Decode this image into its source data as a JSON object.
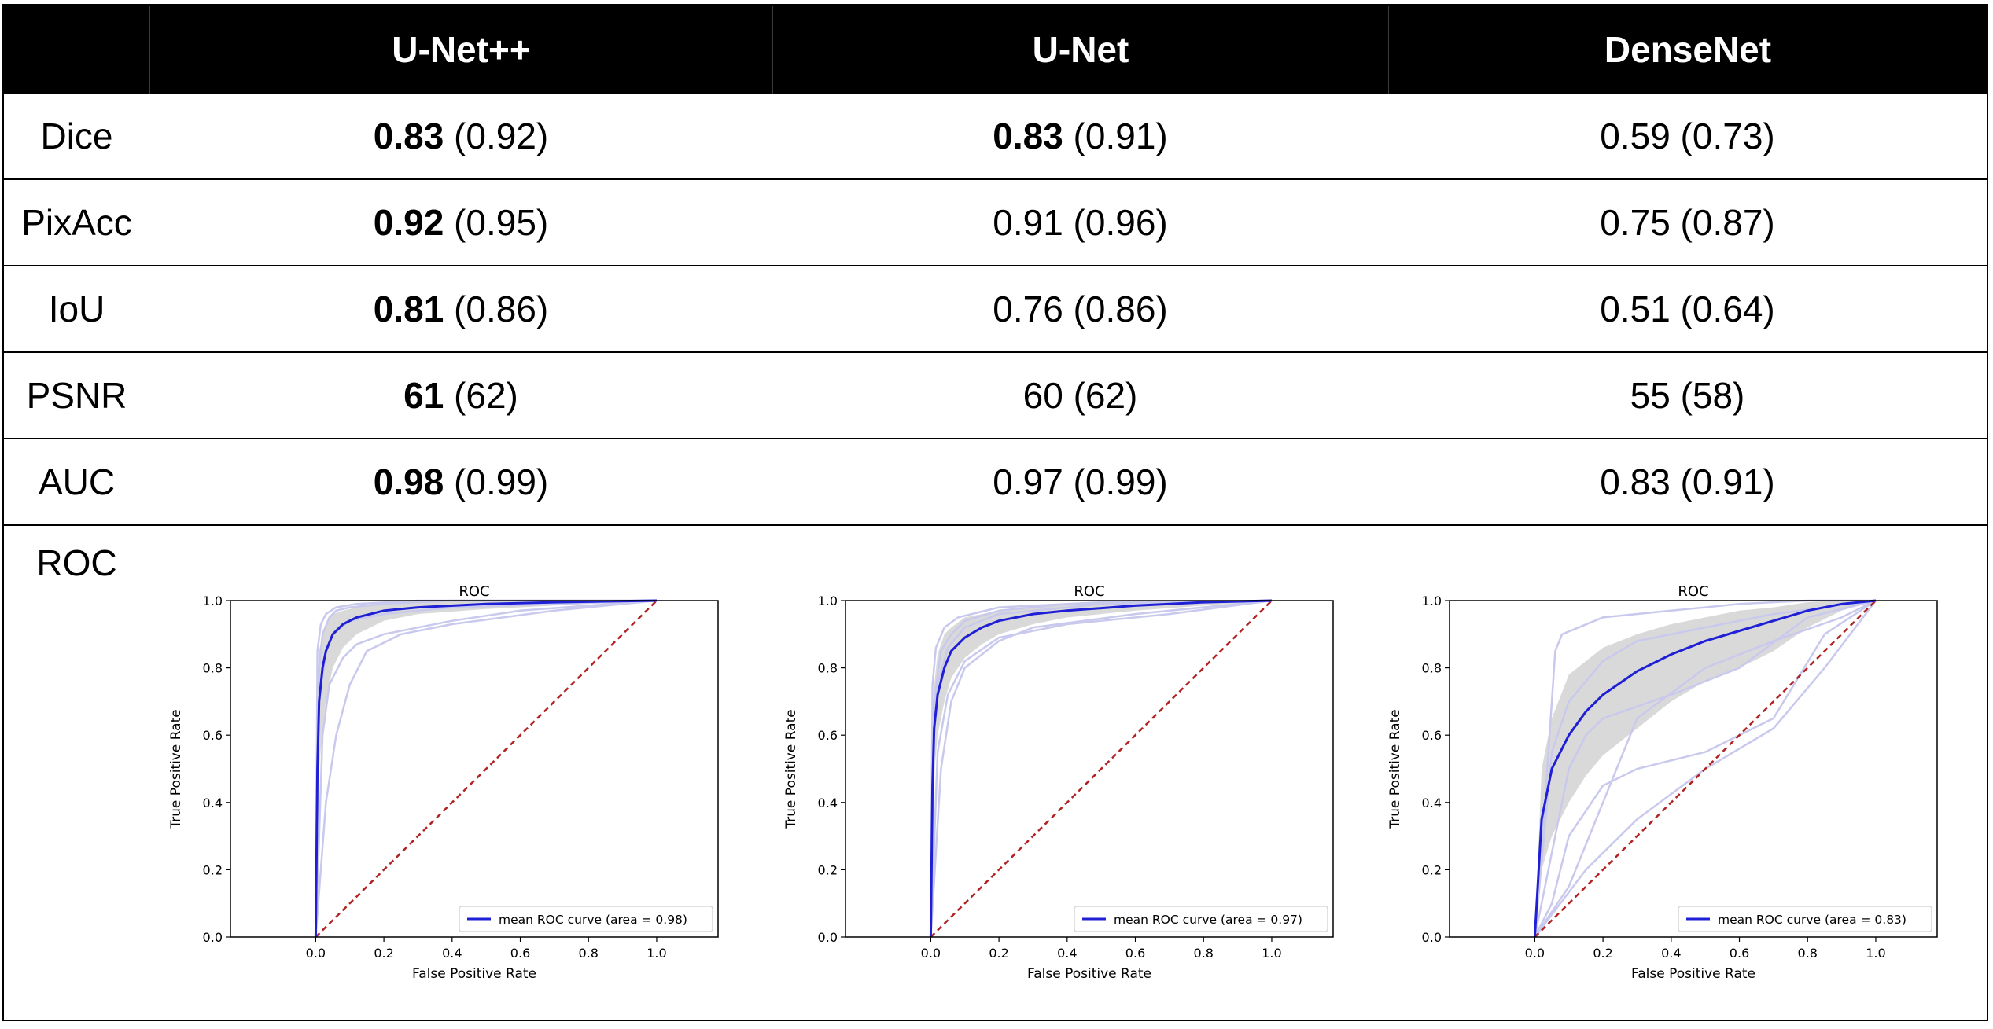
{
  "header": {
    "corner": "",
    "models": [
      "U-Net++",
      "U-Net",
      "DenseNet"
    ]
  },
  "metrics": [
    {
      "label": "Dice",
      "cells": [
        {
          "best": "0.83",
          "rest": " (0.92)"
        },
        {
          "best": "0.83",
          "rest": " (0.91)"
        },
        {
          "best": "",
          "rest": "0.59 (0.73)"
        }
      ]
    },
    {
      "label": "PixAcc",
      "cells": [
        {
          "best": "0.92",
          "rest": " (0.95)"
        },
        {
          "best": "",
          "rest": "0.91 (0.96)"
        },
        {
          "best": "",
          "rest": "0.75 (0.87)"
        }
      ]
    },
    {
      "label": "IoU",
      "cells": [
        {
          "best": "0.81",
          "rest": " (0.86)"
        },
        {
          "best": "",
          "rest": "0.76 (0.86)"
        },
        {
          "best": "",
          "rest": "0.51 (0.64)"
        }
      ]
    },
    {
      "label": "PSNR",
      "cells": [
        {
          "best": "61",
          "rest": " (62)"
        },
        {
          "best": "",
          "rest": "60 (62)"
        },
        {
          "best": "",
          "rest": "55 (58)"
        }
      ]
    },
    {
      "label": "AUC",
      "cells": [
        {
          "best": "0.98",
          "rest": " (0.99)"
        },
        {
          "best": "",
          "rest": "0.97 (0.99)"
        },
        {
          "best": "",
          "rest": "0.83 (0.91)"
        }
      ]
    }
  ],
  "roc_label": "ROC",
  "colors": {
    "mean": "#1f1fd6",
    "fold": "#c9c9ee",
    "band": "#c0c0c0",
    "chance": "#b22222",
    "header_bg": "#000000"
  },
  "chart_data": [
    {
      "type": "line",
      "title": "ROC",
      "xlabel": "False Positive Rate",
      "ylabel": "True Positive Rate",
      "xlim": [
        -0.25,
        1.18
      ],
      "ylim": [
        0,
        1
      ],
      "xticks": [
        "0.0",
        "0.2",
        "0.4",
        "0.6",
        "0.8",
        "1.0"
      ],
      "yticks": [
        "0.0",
        "0.2",
        "0.4",
        "0.6",
        "0.8",
        "1.0"
      ],
      "legend": "mean ROC curve (area = 0.98)",
      "legend_position": "lower-right",
      "mean": {
        "x": [
          0,
          0.005,
          0.01,
          0.02,
          0.03,
          0.05,
          0.08,
          0.12,
          0.2,
          0.3,
          0.5,
          0.7,
          1.0
        ],
        "y": [
          0,
          0.5,
          0.7,
          0.8,
          0.85,
          0.9,
          0.93,
          0.95,
          0.97,
          0.98,
          0.99,
          0.995,
          1.0
        ]
      },
      "band_upper": [
        0,
        0.7,
        0.85,
        0.9,
        0.93,
        0.96,
        0.97,
        0.98,
        0.99,
        0.995,
        1.0,
        1.0,
        1.0
      ],
      "band_lower": [
        0,
        0.3,
        0.5,
        0.62,
        0.7,
        0.8,
        0.86,
        0.9,
        0.94,
        0.96,
        0.975,
        0.985,
        1.0
      ],
      "folds": [
        {
          "x": [
            0,
            0.01,
            0.02,
            0.04,
            0.06,
            0.1,
            0.2,
            0.4,
            1.0
          ],
          "y": [
            0,
            0.8,
            0.9,
            0.95,
            0.97,
            0.98,
            0.99,
            1.0,
            1.0
          ]
        },
        {
          "x": [
            0,
            0.02,
            0.04,
            0.08,
            0.12,
            0.2,
            0.4,
            0.6,
            1.0
          ],
          "y": [
            0,
            0.6,
            0.75,
            0.83,
            0.87,
            0.9,
            0.94,
            0.97,
            1.0
          ]
        },
        {
          "x": [
            0,
            0.01,
            0.03,
            0.05,
            0.1,
            0.2,
            0.4,
            1.0
          ],
          "y": [
            0,
            0.7,
            0.85,
            0.9,
            0.94,
            0.96,
            0.98,
            1.0
          ]
        },
        {
          "x": [
            0,
            0.03,
            0.06,
            0.1,
            0.15,
            0.25,
            0.4,
            0.7,
            1.0
          ],
          "y": [
            0,
            0.4,
            0.6,
            0.75,
            0.85,
            0.9,
            0.93,
            0.97,
            1.0
          ]
        },
        {
          "x": [
            0,
            0.005,
            0.015,
            0.03,
            0.06,
            0.12,
            0.3,
            1.0
          ],
          "y": [
            0,
            0.85,
            0.93,
            0.96,
            0.98,
            0.99,
            1.0,
            1.0
          ]
        }
      ]
    },
    {
      "type": "line",
      "title": "ROC",
      "xlabel": "False Positive Rate",
      "ylabel": "True Positive Rate",
      "xlim": [
        -0.25,
        1.18
      ],
      "ylim": [
        0,
        1
      ],
      "xticks": [
        "0.0",
        "0.2",
        "0.4",
        "0.6",
        "0.8",
        "1.0"
      ],
      "yticks": [
        "0.0",
        "0.2",
        "0.4",
        "0.6",
        "0.8",
        "1.0"
      ],
      "legend": "mean ROC curve (area = 0.97)",
      "legend_position": "lower-right",
      "mean": {
        "x": [
          0,
          0.005,
          0.01,
          0.02,
          0.04,
          0.06,
          0.1,
          0.15,
          0.2,
          0.3,
          0.4,
          0.6,
          0.8,
          1.0
        ],
        "y": [
          0,
          0.45,
          0.62,
          0.72,
          0.8,
          0.85,
          0.89,
          0.92,
          0.94,
          0.96,
          0.97,
          0.985,
          0.995,
          1.0
        ]
      },
      "band_upper": [
        0,
        0.6,
        0.75,
        0.84,
        0.9,
        0.92,
        0.95,
        0.96,
        0.97,
        0.98,
        0.99,
        1.0,
        1.0,
        1.0
      ],
      "band_lower": [
        0,
        0.3,
        0.48,
        0.6,
        0.7,
        0.77,
        0.83,
        0.87,
        0.9,
        0.93,
        0.95,
        0.97,
        0.985,
        1.0
      ],
      "folds": [
        {
          "x": [
            0,
            0.01,
            0.03,
            0.06,
            0.1,
            0.2,
            0.4,
            1.0
          ],
          "y": [
            0,
            0.7,
            0.85,
            0.9,
            0.94,
            0.97,
            0.99,
            1.0
          ]
        },
        {
          "x": [
            0,
            0.02,
            0.05,
            0.1,
            0.2,
            0.4,
            0.7,
            1.0
          ],
          "y": [
            0,
            0.55,
            0.72,
            0.82,
            0.89,
            0.93,
            0.96,
            1.0
          ]
        },
        {
          "x": [
            0,
            0.01,
            0.02,
            0.05,
            0.1,
            0.2,
            0.5,
            1.0
          ],
          "y": [
            0,
            0.6,
            0.75,
            0.86,
            0.92,
            0.96,
            0.99,
            1.0
          ]
        },
        {
          "x": [
            0,
            0.03,
            0.06,
            0.1,
            0.2,
            0.3,
            0.6,
            1.0
          ],
          "y": [
            0,
            0.5,
            0.7,
            0.8,
            0.88,
            0.92,
            0.96,
            1.0
          ]
        },
        {
          "x": [
            0,
            0.005,
            0.015,
            0.04,
            0.08,
            0.2,
            0.5,
            1.0
          ],
          "y": [
            0,
            0.75,
            0.86,
            0.92,
            0.95,
            0.98,
            0.995,
            1.0
          ]
        }
      ]
    },
    {
      "type": "line",
      "title": "ROC",
      "xlabel": "False Positive Rate",
      "ylabel": "True Positive Rate",
      "xlim": [
        -0.25,
        1.18
      ],
      "ylim": [
        0,
        1
      ],
      "xticks": [
        "0.0",
        "0.2",
        "0.4",
        "0.6",
        "0.8",
        "1.0"
      ],
      "yticks": [
        "0.0",
        "0.2",
        "0.4",
        "0.6",
        "0.8",
        "1.0"
      ],
      "legend": "mean ROC curve (area = 0.83)",
      "legend_position": "lower-right",
      "mean": {
        "x": [
          0,
          0.02,
          0.05,
          0.1,
          0.15,
          0.2,
          0.3,
          0.4,
          0.5,
          0.6,
          0.7,
          0.8,
          0.9,
          1.0
        ],
        "y": [
          0,
          0.35,
          0.5,
          0.6,
          0.67,
          0.72,
          0.79,
          0.84,
          0.88,
          0.91,
          0.94,
          0.97,
          0.99,
          1.0
        ]
      },
      "band_upper": [
        0,
        0.5,
        0.65,
        0.78,
        0.82,
        0.86,
        0.9,
        0.93,
        0.95,
        0.97,
        0.98,
        0.995,
        1.0,
        1.0
      ],
      "band_lower": [
        0,
        0.2,
        0.3,
        0.4,
        0.48,
        0.54,
        0.62,
        0.7,
        0.76,
        0.8,
        0.85,
        0.92,
        0.97,
        1.0
      ],
      "folds": [
        {
          "x": [
            0,
            0.03,
            0.06,
            0.08,
            0.2,
            0.4,
            0.6,
            0.8,
            1.0
          ],
          "y": [
            0,
            0.4,
            0.85,
            0.9,
            0.95,
            0.97,
            0.99,
            1.0,
            1.0
          ]
        },
        {
          "x": [
            0,
            0.05,
            0.1,
            0.2,
            0.3,
            0.5,
            0.7,
            0.85,
            1.0
          ],
          "y": [
            0,
            0.1,
            0.3,
            0.45,
            0.5,
            0.55,
            0.65,
            0.9,
            1.0
          ]
        },
        {
          "x": [
            0,
            0.1,
            0.15,
            0.2,
            0.4,
            0.6,
            0.8,
            1.0
          ],
          "y": [
            0,
            0.5,
            0.6,
            0.65,
            0.72,
            0.8,
            0.95,
            1.0
          ]
        },
        {
          "x": [
            0,
            0.05,
            0.1,
            0.2,
            0.3,
            0.5,
            0.7,
            1.0
          ],
          "y": [
            0,
            0.55,
            0.7,
            0.82,
            0.88,
            0.92,
            0.96,
            1.0
          ]
        },
        {
          "x": [
            0,
            0.1,
            0.2,
            0.3,
            0.5,
            0.7,
            0.9,
            1.0
          ],
          "y": [
            0,
            0.15,
            0.4,
            0.65,
            0.8,
            0.88,
            0.95,
            1.0
          ]
        },
        {
          "x": [
            0,
            0.15,
            0.3,
            0.5,
            0.7,
            0.85,
            1.0
          ],
          "y": [
            0,
            0.2,
            0.35,
            0.5,
            0.62,
            0.8,
            1.0
          ]
        }
      ]
    }
  ]
}
